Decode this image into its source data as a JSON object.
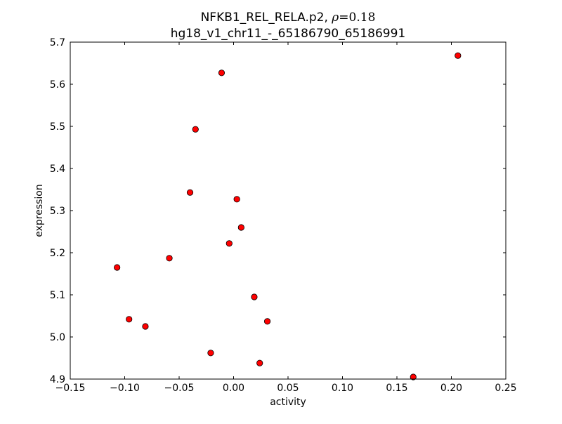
{
  "chart_data": {
    "type": "scatter",
    "title_line1_prefix": "NFKB1_REL_RELA.p2, ",
    "title_rho_symbol": "ρ",
    "title_rho_value": "=0.18",
    "title_line2": "hg18_v1_chr11_-_65186790_65186991",
    "xlabel": "activity",
    "ylabel": "expression",
    "xlim": [
      -0.15,
      0.25
    ],
    "ylim": [
      4.9,
      5.7
    ],
    "xticks": [
      -0.15,
      -0.1,
      -0.05,
      0.0,
      0.05,
      0.1,
      0.15,
      0.2,
      0.25
    ],
    "xtick_labels": [
      "−0.15",
      "−0.10",
      "−0.05",
      "0.00",
      "0.05",
      "0.10",
      "0.15",
      "0.20",
      "0.25"
    ],
    "yticks": [
      4.9,
      5.0,
      5.1,
      5.2,
      5.3,
      5.4,
      5.5,
      5.6,
      5.7
    ],
    "ytick_labels": [
      "4.9",
      "5.0",
      "5.1",
      "5.2",
      "5.3",
      "5.4",
      "5.5",
      "5.6",
      "5.7"
    ],
    "grid": false,
    "marker_color": "#ff0000",
    "points": [
      {
        "x": 0.206,
        "y": 5.668
      },
      {
        "x": -0.011,
        "y": 5.627
      },
      {
        "x": -0.035,
        "y": 5.493
      },
      {
        "x": -0.04,
        "y": 5.343
      },
      {
        "x": 0.003,
        "y": 5.327
      },
      {
        "x": 0.007,
        "y": 5.26
      },
      {
        "x": -0.004,
        "y": 5.222
      },
      {
        "x": -0.059,
        "y": 5.187
      },
      {
        "x": -0.107,
        "y": 5.165
      },
      {
        "x": 0.019,
        "y": 5.095
      },
      {
        "x": -0.096,
        "y": 5.042
      },
      {
        "x": -0.081,
        "y": 5.025
      },
      {
        "x": 0.031,
        "y": 5.037
      },
      {
        "x": -0.021,
        "y": 4.962
      },
      {
        "x": 0.024,
        "y": 4.938
      },
      {
        "x": 0.165,
        "y": 4.905
      }
    ]
  }
}
